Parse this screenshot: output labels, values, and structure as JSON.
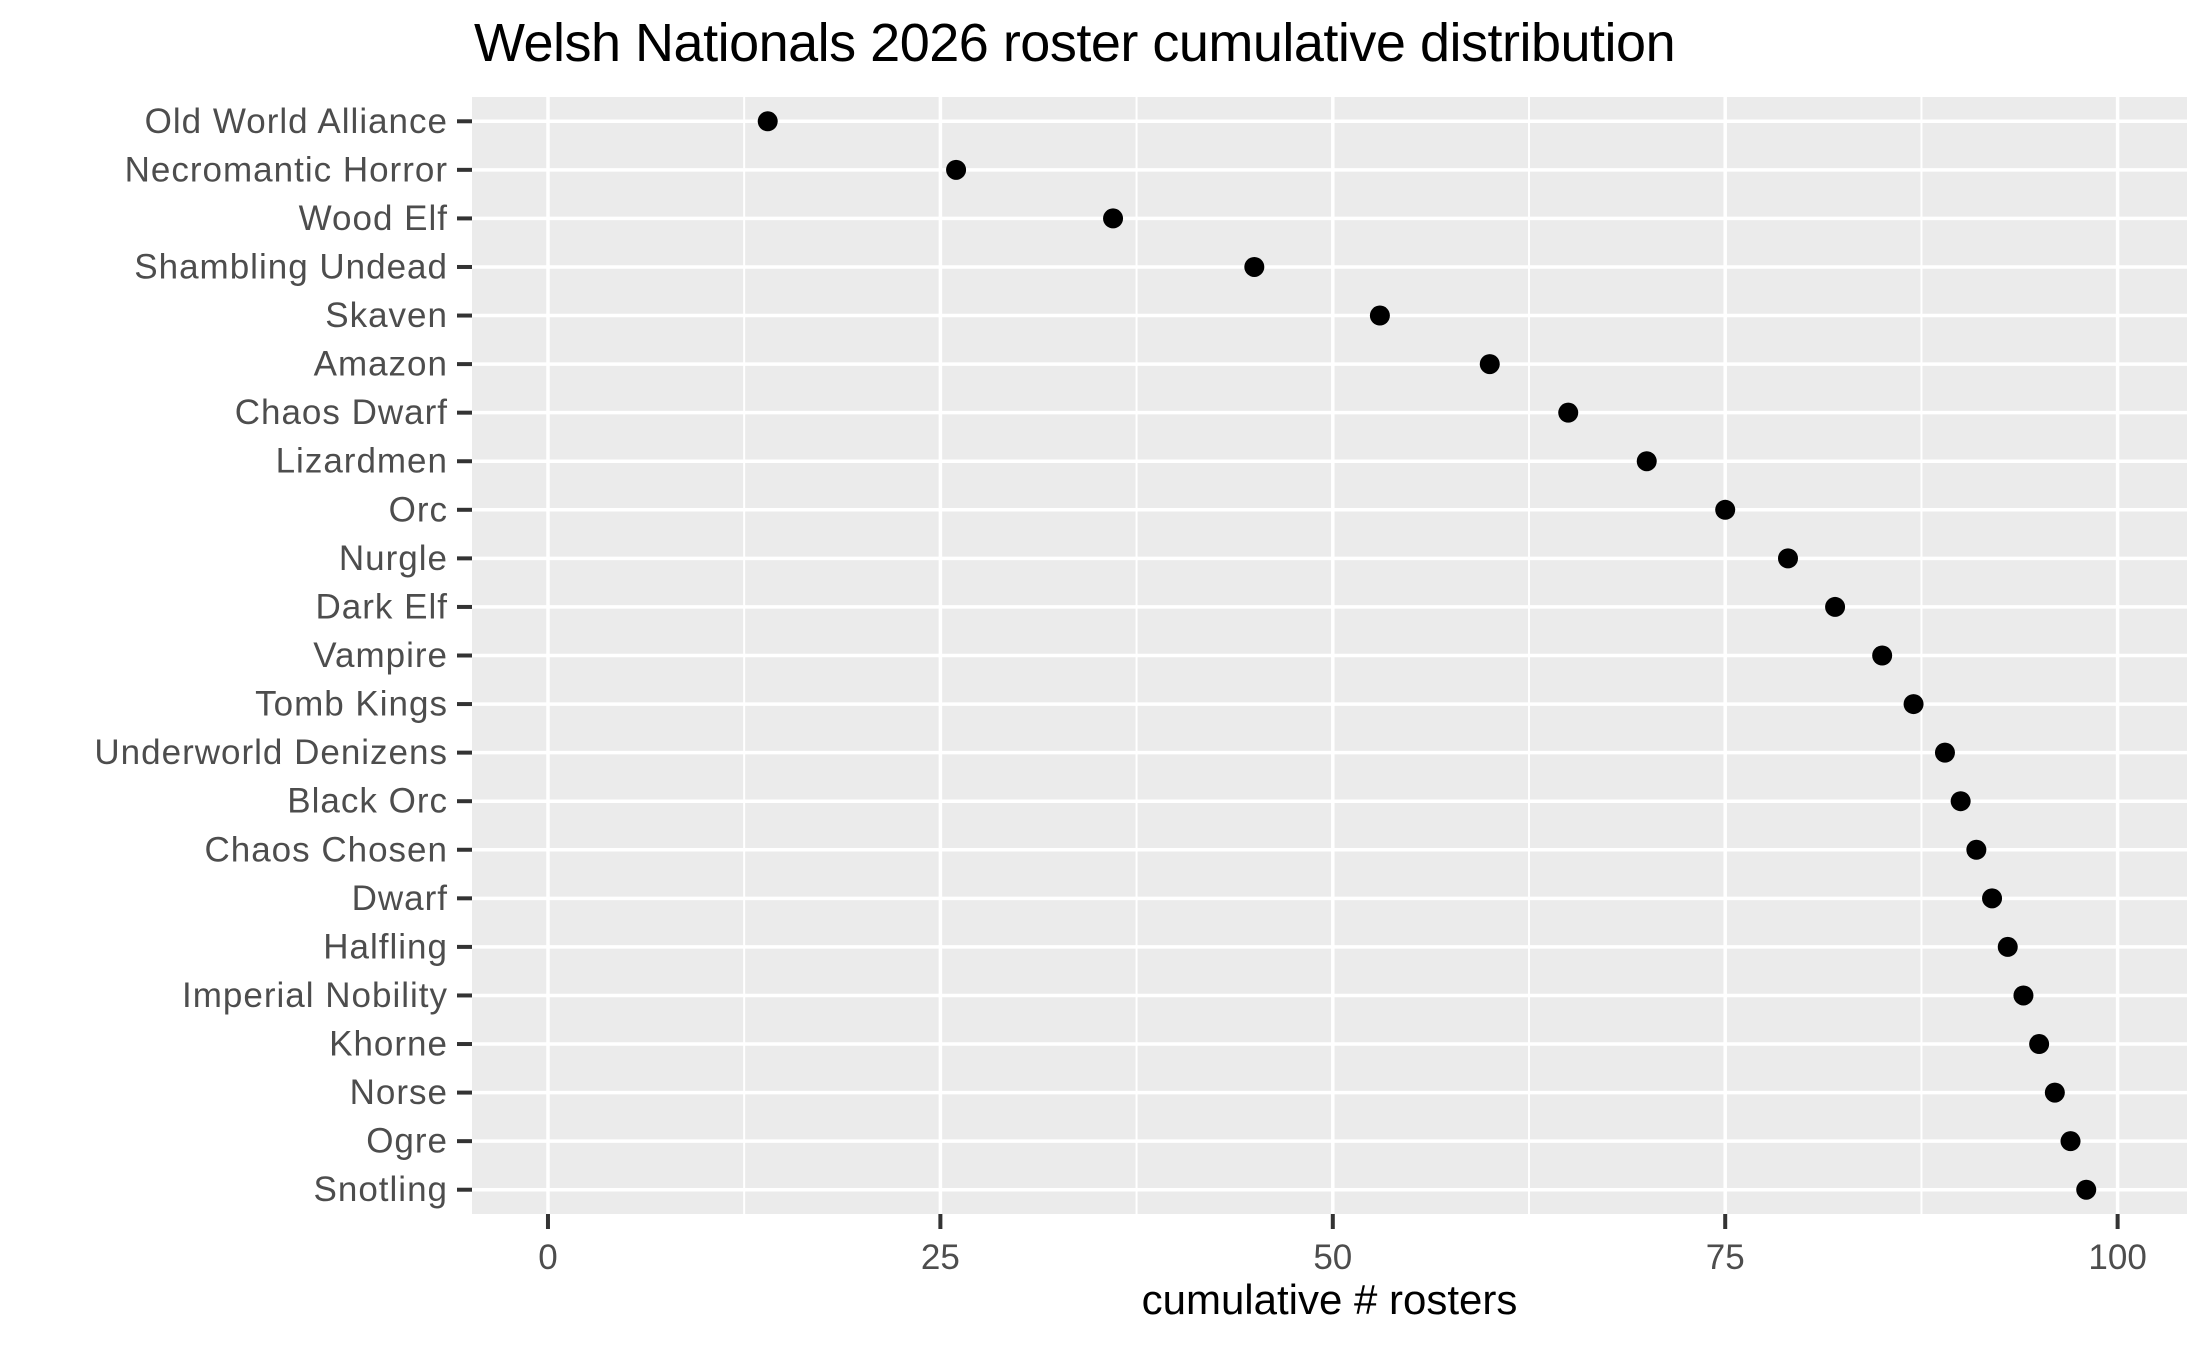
{
  "chart_data": {
    "type": "scatter",
    "title": "Welsh Nationals 2026 roster cumulative distribution",
    "xlabel": "cumulative # rosters",
    "ylabel": "",
    "categories": [
      "Old World Alliance",
      "Necromantic Horror",
      "Wood Elf",
      "Shambling Undead",
      "Skaven",
      "Amazon",
      "Chaos Dwarf",
      "Lizardmen",
      "Orc",
      "Nurgle",
      "Dark Elf",
      "Vampire",
      "Tomb Kings",
      "Underworld Denizens",
      "Black Orc",
      "Chaos Chosen",
      "Dwarf",
      "Halfling",
      "Imperial Nobility",
      "Khorne",
      "Norse",
      "Ogre",
      "Snotling"
    ],
    "values": [
      14,
      26,
      36,
      45,
      53,
      60,
      65,
      70,
      75,
      79,
      82,
      85,
      87,
      89,
      90,
      91,
      92,
      93,
      94,
      95,
      96,
      97,
      98
    ],
    "x_ticks": [
      0,
      25,
      50,
      75,
      100
    ],
    "x_minor_ticks": [
      12.5,
      37.5,
      62.5,
      87.5
    ],
    "xlim": [
      -4.84,
      104.42
    ],
    "grid": "on",
    "legend": "none",
    "point_radius": 10,
    "colors": {
      "page_background": "#FFFFFF",
      "panel_background": "#EBEBEB",
      "grid": "#FFFFFF",
      "point": "#000000",
      "tick_mark": "#333333",
      "tick_label": "#4D4D4D",
      "title": "#000000",
      "axis_title": "#000000"
    }
  }
}
